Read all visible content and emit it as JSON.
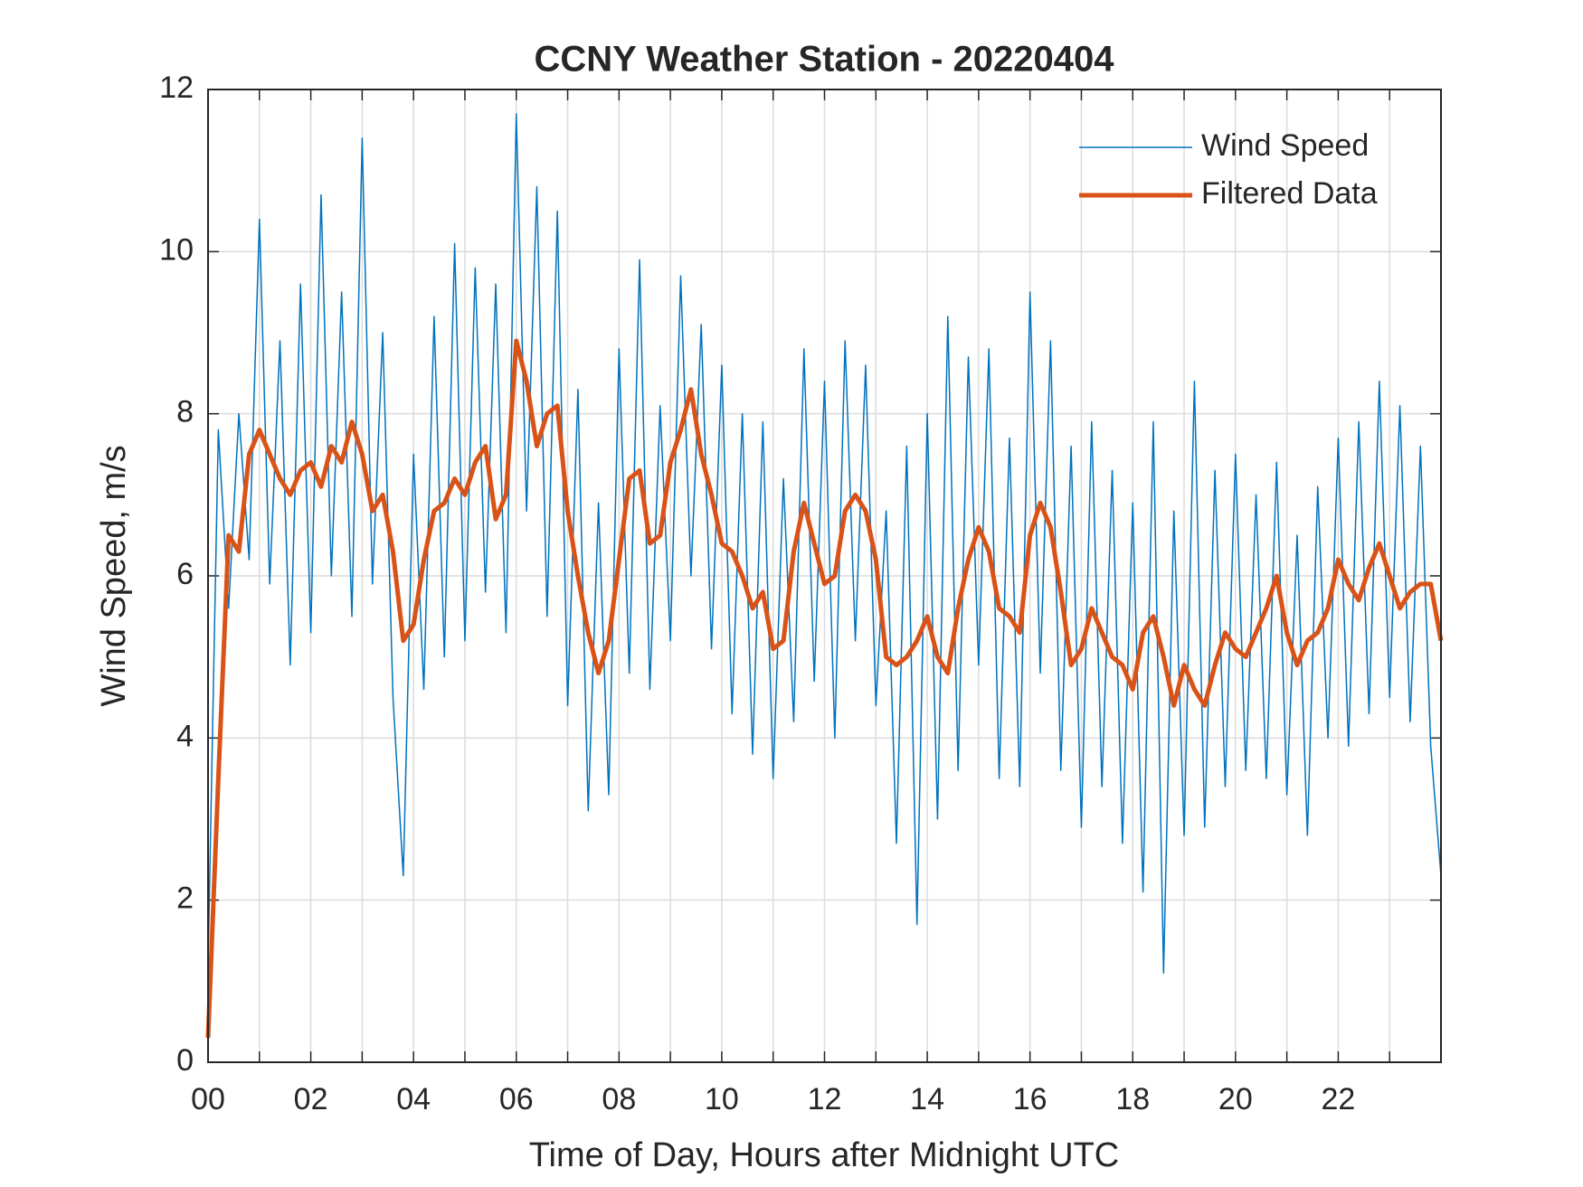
{
  "chart_data": {
    "type": "line",
    "title": "CCNY Weather Station - 20220404",
    "xlabel": "Time of Day, Hours after Midnight UTC",
    "ylabel": "Wind Speed, m/s",
    "xlim": [
      0,
      24
    ],
    "ylim": [
      0,
      12
    ],
    "xticks": [
      {
        "value": 0,
        "label": "00"
      },
      {
        "value": 2,
        "label": "02"
      },
      {
        "value": 4,
        "label": "04"
      },
      {
        "value": 6,
        "label": "06"
      },
      {
        "value": 8,
        "label": "08"
      },
      10,
      12,
      14,
      16,
      18,
      20,
      22
    ],
    "xminorticks": [
      1,
      3,
      5,
      7,
      9,
      11,
      13,
      15,
      17,
      19,
      21,
      23
    ],
    "yticks": [
      0,
      2,
      4,
      6,
      8,
      10,
      12
    ],
    "grid": true,
    "legend": "upper right",
    "x": [
      0,
      0.2,
      0.4,
      0.6,
      0.8,
      1,
      1.2,
      1.4,
      1.6,
      1.8,
      2,
      2.2,
      2.4,
      2.6,
      2.8,
      3,
      3.2,
      3.4,
      3.6,
      3.8,
      4,
      4.2,
      4.4,
      4.6,
      4.8,
      5,
      5.2,
      5.4,
      5.6,
      5.8,
      6,
      6.2,
      6.4,
      6.6,
      6.8,
      7,
      7.2,
      7.4,
      7.6,
      7.8,
      8,
      8.2,
      8.4,
      8.6,
      8.8,
      9,
      9.2,
      9.4,
      9.6,
      9.8,
      10,
      10.2,
      10.4,
      10.6,
      10.8,
      11,
      11.2,
      11.4,
      11.6,
      11.8,
      12,
      12.2,
      12.4,
      12.6,
      12.8,
      13,
      13.2,
      13.4,
      13.6,
      13.8,
      14,
      14.2,
      14.4,
      14.6,
      14.8,
      15,
      15.2,
      15.4,
      15.6,
      15.8,
      16,
      16.2,
      16.4,
      16.6,
      16.8,
      17,
      17.2,
      17.4,
      17.6,
      17.8,
      18,
      18.2,
      18.4,
      18.6,
      18.8,
      19,
      19.2,
      19.4,
      19.6,
      19.8,
      20,
      20.2,
      20.4,
      20.6,
      20.8,
      21,
      21.2,
      21.4,
      21.6,
      21.8,
      22,
      22.2,
      22.4,
      22.6,
      22.8,
      23,
      23.2,
      23.4,
      23.6,
      23.8,
      24
    ],
    "series": [
      {
        "name": "Wind Speed",
        "color": "#0072BD",
        "width": 1.5,
        "values": [
          1.2,
          7.8,
          5.6,
          8.0,
          6.2,
          10.4,
          5.9,
          8.9,
          4.9,
          9.6,
          5.3,
          10.7,
          6.0,
          9.5,
          5.5,
          11.4,
          5.9,
          9.0,
          4.5,
          2.3,
          7.5,
          4.6,
          9.2,
          5.0,
          10.1,
          5.2,
          9.8,
          5.8,
          9.6,
          5.3,
          11.7,
          6.8,
          10.8,
          5.5,
          10.5,
          4.4,
          8.3,
          3.1,
          6.9,
          3.3,
          8.8,
          4.8,
          9.9,
          4.6,
          8.1,
          5.2,
          9.7,
          6.0,
          9.1,
          5.1,
          8.6,
          4.3,
          8.0,
          3.8,
          7.9,
          3.5,
          7.2,
          4.2,
          8.8,
          4.7,
          8.4,
          4.0,
          8.9,
          5.2,
          8.6,
          4.4,
          6.8,
          2.7,
          7.6,
          1.7,
          8.0,
          3.0,
          9.2,
          3.6,
          8.7,
          4.9,
          8.8,
          3.5,
          7.7,
          3.4,
          9.5,
          4.8,
          8.9,
          3.6,
          7.6,
          2.9,
          7.9,
          3.4,
          7.3,
          2.7,
          6.9,
          2.1,
          7.9,
          1.1,
          6.8,
          2.8,
          8.4,
          2.9,
          7.3,
          3.4,
          7.5,
          3.6,
          7.0,
          3.5,
          7.4,
          3.3,
          6.5,
          2.8,
          7.1,
          4.0,
          7.7,
          3.9,
          7.9,
          4.3,
          8.4,
          4.5,
          8.1,
          4.2,
          7.6,
          3.9,
          2.3
        ]
      },
      {
        "name": "Filtered Data",
        "color": "#D95319",
        "width": 5,
        "values": [
          0.3,
          3.5,
          6.5,
          6.3,
          7.5,
          7.8,
          7.5,
          7.2,
          7.0,
          7.3,
          7.4,
          7.1,
          7.6,
          7.4,
          7.9,
          7.5,
          6.8,
          7.0,
          6.3,
          5.2,
          5.4,
          6.2,
          6.8,
          6.9,
          7.2,
          7.0,
          7.4,
          7.6,
          6.7,
          7.0,
          8.9,
          8.4,
          7.6,
          8.0,
          8.1,
          6.8,
          6.0,
          5.3,
          4.8,
          5.2,
          6.2,
          7.2,
          7.3,
          6.4,
          6.5,
          7.4,
          7.8,
          8.3,
          7.5,
          7.0,
          6.4,
          6.3,
          6.0,
          5.6,
          5.8,
          5.1,
          5.2,
          6.3,
          6.9,
          6.4,
          5.9,
          6.0,
          6.8,
          7.0,
          6.8,
          6.2,
          5.0,
          4.9,
          5.0,
          5.2,
          5.5,
          5.0,
          4.8,
          5.6,
          6.2,
          6.6,
          6.3,
          5.6,
          5.5,
          5.3,
          6.5,
          6.9,
          6.6,
          5.8,
          4.9,
          5.1,
          5.6,
          5.3,
          5.0,
          4.9,
          4.6,
          5.3,
          5.5,
          5.0,
          4.4,
          4.9,
          4.6,
          4.4,
          4.9,
          5.3,
          5.1,
          5.0,
          5.3,
          5.6,
          6.0,
          5.3,
          4.9,
          5.2,
          5.3,
          5.6,
          6.2,
          5.9,
          5.7,
          6.1,
          6.4,
          6.0,
          5.6,
          5.8,
          5.9,
          5.9,
          5.2
        ]
      }
    ]
  }
}
